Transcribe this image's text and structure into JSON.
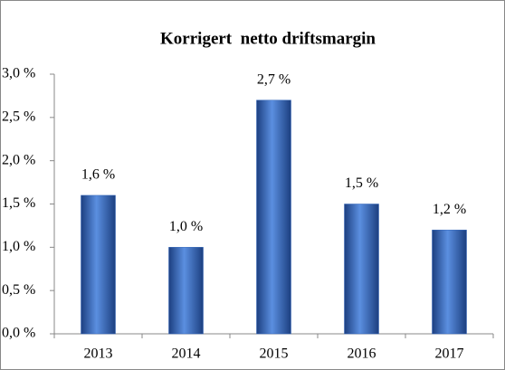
{
  "chart_data": {
    "type": "bar",
    "title": "Korrigert  netto driftsmargin",
    "categories": [
      "2013",
      "2014",
      "2015",
      "2016",
      "2017"
    ],
    "values": [
      1.6,
      1.0,
      2.7,
      1.5,
      1.2
    ],
    "value_labels": [
      "1,6 %",
      "1,0 %",
      "2,7 %",
      "1,5 %",
      "1,2 %"
    ],
    "color": "#2e63b8",
    "ylim": [
      0,
      3
    ],
    "yticks": [
      {
        "value": 0,
        "label": "0,0 %"
      },
      {
        "value": 0.5,
        "label": "0,5 %"
      },
      {
        "value": 1,
        "label": "1,0 %"
      },
      {
        "value": 1.5,
        "label": "1,5 %"
      },
      {
        "value": 2,
        "label": "2,0 %"
      },
      {
        "value": 2.5,
        "label": "2,5 %"
      },
      {
        "value": 3,
        "label": "3,0 %"
      }
    ],
    "grid": false
  }
}
